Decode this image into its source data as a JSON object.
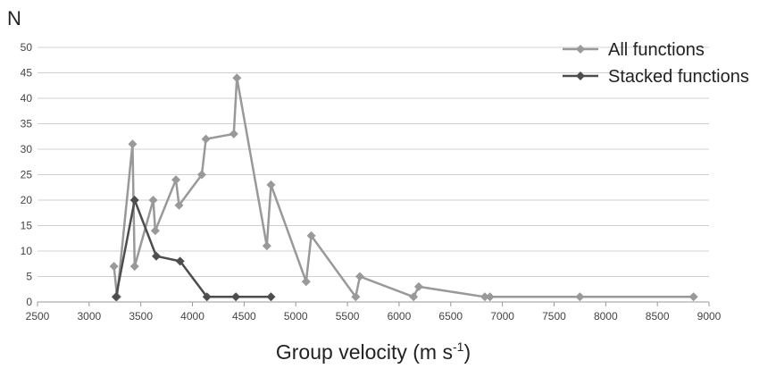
{
  "chart_data": {
    "type": "line",
    "title": "",
    "ylabel": "N",
    "xlabel_main": "Group velocity (m s",
    "xlabel_sup": "-1",
    "xlabel_close": ")",
    "xlim": [
      2500,
      9000
    ],
    "ylim": [
      0,
      50
    ],
    "xticks": [
      2500,
      3000,
      3500,
      4000,
      4500,
      5000,
      5500,
      6000,
      6500,
      7000,
      7500,
      8000,
      8500,
      9000
    ],
    "yticks": [
      0,
      5,
      10,
      15,
      20,
      25,
      30,
      35,
      40,
      45,
      50
    ],
    "grid": true,
    "legend_position": "top-right",
    "series": [
      {
        "name": "All functions",
        "color": "#999999",
        "marker": "diamond",
        "points": [
          [
            3240,
            7
          ],
          [
            3270,
            1
          ],
          [
            3420,
            31
          ],
          [
            3440,
            7
          ],
          [
            3620,
            20
          ],
          [
            3640,
            14
          ],
          [
            3840,
            24
          ],
          [
            3870,
            19
          ],
          [
            4090,
            25
          ],
          [
            4130,
            32
          ],
          [
            4400,
            33
          ],
          [
            4430,
            44
          ],
          [
            4720,
            11
          ],
          [
            4760,
            23
          ],
          [
            5100,
            4
          ],
          [
            5150,
            13
          ],
          [
            5580,
            1
          ],
          [
            5620,
            5
          ],
          [
            6140,
            1
          ],
          [
            6190,
            3
          ],
          [
            6830,
            1
          ],
          [
            6880,
            1
          ],
          [
            7750,
            1
          ],
          [
            8850,
            1
          ]
        ]
      },
      {
        "name": "Stacked functions",
        "color": "#4d4d4d",
        "marker": "diamond",
        "points": [
          [
            3260,
            1
          ],
          [
            3440,
            20
          ],
          [
            3650,
            9
          ],
          [
            3880,
            8
          ],
          [
            4140,
            1
          ],
          [
            4420,
            1
          ],
          [
            4760,
            1
          ]
        ]
      }
    ]
  }
}
